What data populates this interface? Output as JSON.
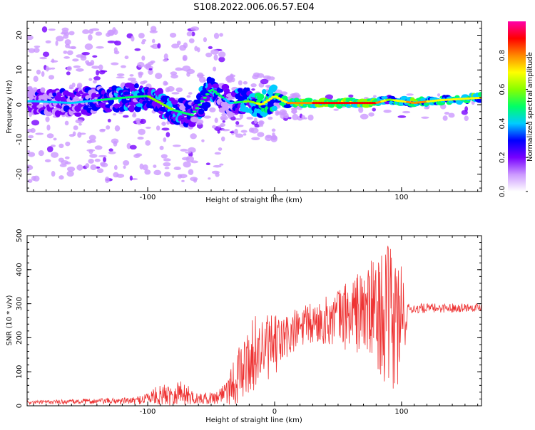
{
  "title": "S108.2022.006.06.57.E04",
  "chart_data": [
    {
      "type": "heatmap",
      "xlabel": "Height of straight line (km)",
      "ylabel": "Frequency (Hz)",
      "xlim": [
        -195,
        163
      ],
      "ylim": [
        -25,
        24
      ],
      "xticks": [
        -100,
        0,
        100
      ],
      "yticks": [
        -20,
        -10,
        0,
        10,
        20
      ],
      "colorbar": {
        "label": "Normalized spectral amplitude",
        "range": [
          0,
          1
        ],
        "ticks": [
          0.0,
          0.2,
          0.4,
          0.6,
          0.8
        ],
        "colormap": [
          "#ffffff",
          "#cc99ff",
          "#7700ff",
          "#0000ff",
          "#00ccff",
          "#00ff66",
          "#88ff00",
          "#ffff00",
          "#ff8800",
          "#ff0000",
          "#ff00aa"
        ]
      },
      "ridge": [
        {
          "x": -190,
          "f": 1.0,
          "a": 0.35
        },
        {
          "x": -160,
          "f": 0.5,
          "a": 0.4
        },
        {
          "x": -120,
          "f": 2.0,
          "a": 0.5
        },
        {
          "x": -100,
          "f": 2.5,
          "a": 0.55
        },
        {
          "x": -80,
          "f": -1.5,
          "a": 0.55
        },
        {
          "x": -65,
          "f": -3.0,
          "a": 0.45
        },
        {
          "x": -50,
          "f": 4.5,
          "a": 0.55
        },
        {
          "x": -35,
          "f": 0.5,
          "a": 0.4
        },
        {
          "x": -20,
          "f": 1.0,
          "a": 0.6
        },
        {
          "x": -10,
          "f": 0.0,
          "a": 0.7
        },
        {
          "x": 0,
          "f": 2.5,
          "a": 0.65
        },
        {
          "x": 10,
          "f": 0.5,
          "a": 0.75
        },
        {
          "x": 30,
          "f": 0.5,
          "a": 0.85
        },
        {
          "x": 60,
          "f": 0.5,
          "a": 0.9
        },
        {
          "x": 80,
          "f": 0.5,
          "a": 0.85
        },
        {
          "x": 90,
          "f": 1.5,
          "a": 0.6
        },
        {
          "x": 110,
          "f": 0.5,
          "a": 0.8
        },
        {
          "x": 130,
          "f": 1.3,
          "a": 0.7
        },
        {
          "x": 163,
          "f": 2.0,
          "a": 0.75
        }
      ]
    },
    {
      "type": "line",
      "xlabel": "Height of straight line (km)",
      "ylabel": "SNR (10 * v/v)",
      "xlim": [
        -195,
        163
      ],
      "ylim": [
        0,
        500
      ],
      "xticks": [
        -100,
        0,
        100
      ],
      "yticks": [
        0,
        100,
        200,
        300,
        400,
        500
      ],
      "color": "#ee3333",
      "envelope": [
        {
          "x": -195,
          "mean": 10,
          "spread": 5
        },
        {
          "x": -110,
          "mean": 15,
          "spread": 10
        },
        {
          "x": -95,
          "mean": 28,
          "spread": 25
        },
        {
          "x": -75,
          "mean": 40,
          "spread": 40
        },
        {
          "x": -60,
          "mean": 20,
          "spread": 15
        },
        {
          "x": -45,
          "mean": 25,
          "spread": 20
        },
        {
          "x": -30,
          "mean": 80,
          "spread": 80
        },
        {
          "x": -15,
          "mean": 160,
          "spread": 110
        },
        {
          "x": 0,
          "mean": 175,
          "spread": 90
        },
        {
          "x": 20,
          "mean": 230,
          "spread": 60
        },
        {
          "x": 40,
          "mean": 250,
          "spread": 70
        },
        {
          "x": 60,
          "mean": 270,
          "spread": 110
        },
        {
          "x": 80,
          "mean": 280,
          "spread": 160
        },
        {
          "x": 92,
          "mean": 250,
          "spread": 230
        },
        {
          "x": 100,
          "mean": 240,
          "spread": 220
        },
        {
          "x": 105,
          "mean": 285,
          "spread": 15
        },
        {
          "x": 163,
          "mean": 290,
          "spread": 12
        }
      ]
    }
  ]
}
